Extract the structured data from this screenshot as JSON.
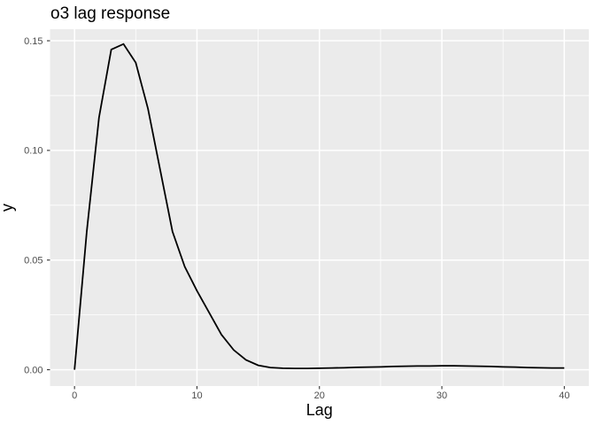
{
  "chart_data": {
    "type": "line",
    "title": "o3 lag response",
    "xlabel": "Lag",
    "ylabel": "y",
    "x": [
      0,
      1,
      2,
      3,
      4,
      5,
      6,
      7,
      8,
      9,
      10,
      11,
      12,
      13,
      14,
      15,
      16,
      17,
      18,
      19,
      20,
      21,
      22,
      23,
      24,
      25,
      26,
      27,
      28,
      29,
      30,
      31,
      32,
      33,
      34,
      35,
      36,
      37,
      38,
      39,
      40
    ],
    "y": [
      0.0,
      0.063,
      0.115,
      0.146,
      0.1485,
      0.14,
      0.119,
      0.091,
      0.063,
      0.047,
      0.036,
      0.026,
      0.016,
      0.009,
      0.0045,
      0.002,
      0.001,
      0.0007,
      0.0006,
      0.0006,
      0.0007,
      0.0008,
      0.0009,
      0.0011,
      0.0012,
      0.0013,
      0.0015,
      0.0016,
      0.0017,
      0.0017,
      0.0018,
      0.0018,
      0.0017,
      0.0016,
      0.0015,
      0.0013,
      0.0012,
      0.001,
      0.0009,
      0.0008,
      0.0008
    ],
    "xlim": [
      -2,
      42
    ],
    "ylim": [
      -0.00744,
      0.15526
    ],
    "x_ticks": [
      0,
      10,
      20,
      30,
      40
    ],
    "x_tick_labels": [
      "0",
      "10",
      "20",
      "30",
      "40"
    ],
    "y_ticks": [
      0,
      0.05,
      0.1,
      0.15
    ],
    "y_tick_labels": [
      "0.00",
      "0.05",
      "0.10",
      "0.15"
    ],
    "x_minor_ticks": [
      5,
      15,
      25,
      35
    ],
    "y_minor_ticks": [
      0.025,
      0.075,
      0.125
    ],
    "grid": true,
    "legend": "none",
    "theme": "ggplot2-gray",
    "colors": {
      "plot_background": "#ffffff",
      "panel_background": "#ebebeb",
      "grid": "#ffffff",
      "line": "#000000",
      "tick_mark": "#333333",
      "tick_label": "#4d4d4d",
      "title_text": "#000000"
    }
  }
}
